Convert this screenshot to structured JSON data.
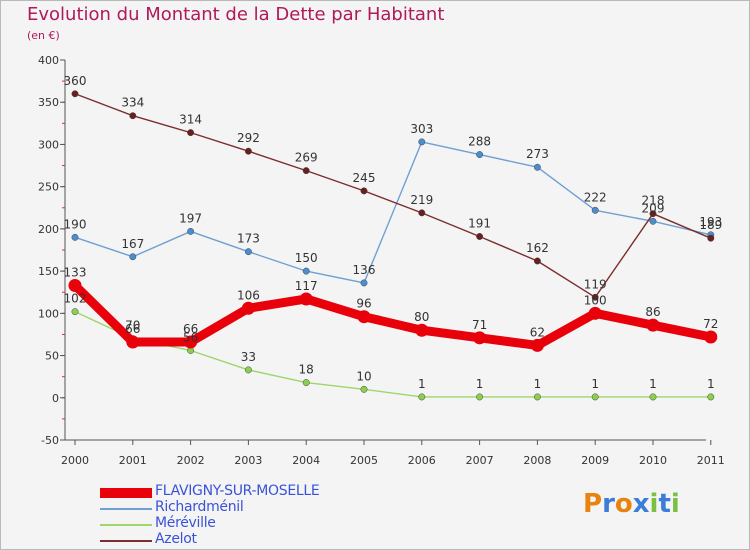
{
  "header": {
    "title": "Evolution du Montant de la Dette par Habitant",
    "unit": "(en €)"
  },
  "colors": {
    "title": "#b0195a",
    "legend_text": "#3a52d8",
    "axis_text": "#333333"
  },
  "logo": {
    "text": "Proxiti",
    "letters": [
      "P",
      "r",
      "o",
      "x",
      "i",
      "t",
      "i"
    ],
    "colors": [
      "#e8830e",
      "#3b7dd8",
      "#e8830e",
      "#3b7dd8",
      "#7bc043",
      "#3b7dd8",
      "#7bc043"
    ]
  },
  "chart_data": {
    "type": "line",
    "x": [
      "2000",
      "2001",
      "2002",
      "2003",
      "2004",
      "2005",
      "2006",
      "2007",
      "2008",
      "2009",
      "2010",
      "2011"
    ],
    "ylim": [
      -50,
      400
    ],
    "yticks": [
      -50,
      0,
      50,
      100,
      150,
      200,
      250,
      300,
      350,
      400
    ],
    "grid": false,
    "legend_position": "bottom-left",
    "series": [
      {
        "name": "FLAVIGNY-SUR-MOSELLE",
        "color": "#e8000b",
        "marker": "#e8000b",
        "values": [
          133,
          66,
          66,
          106,
          117,
          96,
          80,
          71,
          62,
          100,
          86,
          72
        ],
        "labels": [
          "133",
          "66",
          "66",
          "106",
          "117",
          "96",
          "80",
          "71",
          "62",
          "100",
          "86",
          "72"
        ]
      },
      {
        "name": "Richardménil",
        "color": "#6f9fd4",
        "marker": "#4a8ed0",
        "values": [
          190,
          167,
          197,
          173,
          150,
          136,
          303,
          288,
          273,
          222,
          209,
          193
        ],
        "labels": [
          "190",
          "167",
          "197",
          "173",
          "150",
          "136",
          "303",
          "288",
          "273",
          "222",
          "209",
          "193"
        ]
      },
      {
        "name": "Méréville",
        "color": "#9ed66b",
        "marker": "#8ccf4d",
        "values": [
          102,
          70,
          56,
          33,
          18,
          10,
          1,
          1,
          1,
          1,
          1,
          1
        ],
        "labels": [
          "102",
          "70",
          "56",
          "33",
          "18",
          "10",
          "1",
          "1",
          "1",
          "1",
          "1",
          "1"
        ]
      },
      {
        "name": "Azelot",
        "color": "#7a2e2e",
        "marker": "#6a1f1f",
        "values": [
          360,
          334,
          314,
          292,
          269,
          245,
          219,
          191,
          162,
          119,
          218,
          189
        ],
        "labels": [
          "360",
          "334",
          "314",
          "292",
          "269",
          "245",
          "219",
          "191",
          "162",
          "119",
          "218",
          "189"
        ]
      }
    ]
  }
}
